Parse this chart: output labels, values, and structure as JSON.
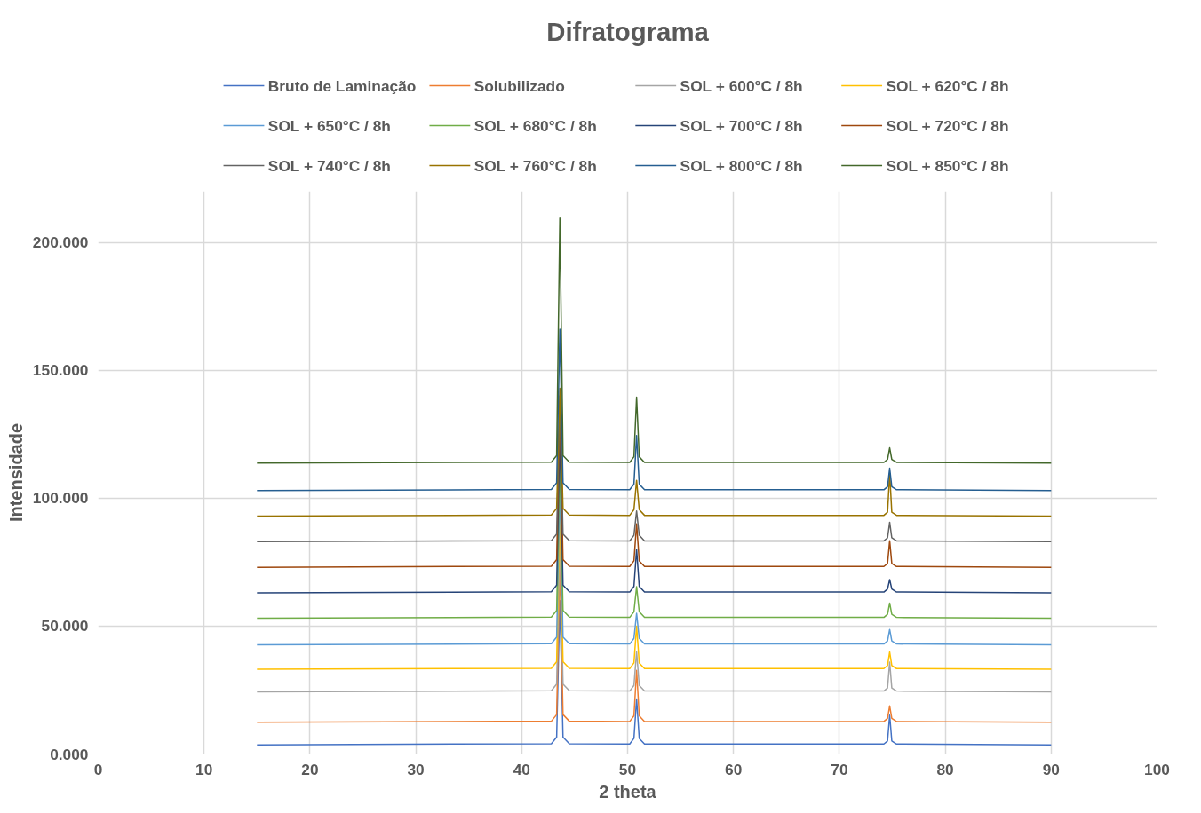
{
  "chart_data": {
    "type": "line",
    "title": "Difratograma",
    "xlabel": "2 theta",
    "ylabel": "Intensidade",
    "x": [
      15,
      42.8,
      43.3,
      43.6,
      43.9,
      44.5,
      50.2,
      50.6,
      50.85,
      51.1,
      51.6,
      74.2,
      74.55,
      74.75,
      74.95,
      75.4,
      90
    ],
    "xlim": [
      0,
      100
    ],
    "xticks": [
      0,
      10,
      20,
      30,
      40,
      50,
      60,
      70,
      80,
      90,
      100
    ],
    "ylim": [
      0,
      220
    ],
    "yticks": [
      {
        "value": 0,
        "label": "0.000"
      },
      {
        "value": 50,
        "label": "50.000"
      },
      {
        "value": 100,
        "label": "100.000"
      },
      {
        "value": 150,
        "label": "150.000"
      },
      {
        "value": 200,
        "label": "200.000"
      }
    ],
    "grid": true,
    "legend": "top",
    "marker": "none",
    "line_style": "solid",
    "series": [
      {
        "name": "Bruto de Laminação",
        "color": "#4472c4",
        "values": [
          3.6,
          4.0,
          6.6,
          60,
          6.6,
          4.0,
          3.9,
          6.1,
          21.5,
          6.1,
          3.9,
          3.9,
          5.1,
          15.2,
          5.1,
          3.9,
          3.6
        ]
      },
      {
        "name": "Solubilizado",
        "color": "#ed7d31",
        "values": [
          12.4,
          12.8,
          15.4,
          75,
          15.4,
          12.8,
          12.7,
          14.9,
          32.7,
          14.9,
          12.7,
          12.7,
          13.9,
          18.8,
          13.9,
          12.7,
          12.4
        ]
      },
      {
        "name": "SOL + 600°C / 8h",
        "color": "#a5a5a5",
        "values": [
          24.3,
          24.7,
          27.3,
          85,
          27.3,
          24.7,
          24.6,
          26.8,
          40,
          26.8,
          24.6,
          24.6,
          25.8,
          35.9,
          25.8,
          24.6,
          24.3
        ]
      },
      {
        "name": "SOL + 620°C / 8h",
        "color": "#ffc000",
        "values": [
          33.1,
          33.5,
          36.1,
          95,
          36.1,
          33.5,
          33.4,
          35.6,
          50,
          35.6,
          33.4,
          33.4,
          34.6,
          39.9,
          34.6,
          33.4,
          33.1
        ]
      },
      {
        "name": "SOL + 650°C / 8h",
        "color": "#5b9bd5",
        "values": [
          42.7,
          43.1,
          45.7,
          105,
          45.7,
          43.1,
          43.0,
          45.2,
          55,
          45.2,
          43.0,
          43.0,
          44.2,
          48.7,
          44.2,
          43.0,
          42.7
        ]
      },
      {
        "name": "SOL + 680°C / 8h",
        "color": "#70ad47",
        "values": [
          53.1,
          53.5,
          56.1,
          115,
          56.1,
          53.5,
          53.4,
          55.6,
          65.4,
          55.6,
          53.4,
          53.4,
          54.6,
          59,
          54.6,
          53.4,
          53.1
        ]
      },
      {
        "name": "SOL + 700°C / 8h",
        "color": "#264478",
        "values": [
          63,
          63.4,
          66,
          125,
          66,
          63.4,
          63.3,
          65.5,
          80,
          65.5,
          63.3,
          63.3,
          64.5,
          68.2,
          64.5,
          63.3,
          63
        ]
      },
      {
        "name": "SOL + 720°C / 8h",
        "color": "#9e480e",
        "values": [
          73,
          73.4,
          76,
          135,
          76,
          73.4,
          73.3,
          75.5,
          90,
          75.5,
          73.3,
          73.3,
          74.5,
          83.4,
          74.5,
          73.3,
          73
        ]
      },
      {
        "name": "SOL + 740°C / 8h",
        "color": "#636363",
        "values": [
          83,
          83.4,
          86,
          140,
          86,
          83.4,
          83.3,
          85.5,
          95,
          85.5,
          83.3,
          83.3,
          84.5,
          90.6,
          84.5,
          83.3,
          83
        ]
      },
      {
        "name": "SOL + 760°C / 8h",
        "color": "#997300",
        "values": [
          93,
          93.4,
          96,
          143,
          96,
          93.4,
          93.3,
          95.5,
          107,
          95.5,
          93.3,
          93.3,
          94.5,
          109.7,
          94.5,
          93.3,
          93
        ]
      },
      {
        "name": "SOL + 800°C / 8h",
        "color": "#255e91",
        "values": [
          103,
          103.4,
          106,
          166,
          106,
          103.4,
          103.3,
          105.5,
          124.5,
          105.5,
          103.3,
          103.3,
          104.5,
          111.7,
          104.5,
          103.3,
          103
        ]
      },
      {
        "name": "SOL + 850°C / 8h",
        "color": "#43682b",
        "values": [
          113.7,
          114.1,
          116.7,
          209.5,
          116.7,
          114.1,
          114,
          116.2,
          139.5,
          116.2,
          114,
          114,
          115.2,
          119.7,
          115.2,
          114,
          113.7
        ]
      }
    ]
  }
}
